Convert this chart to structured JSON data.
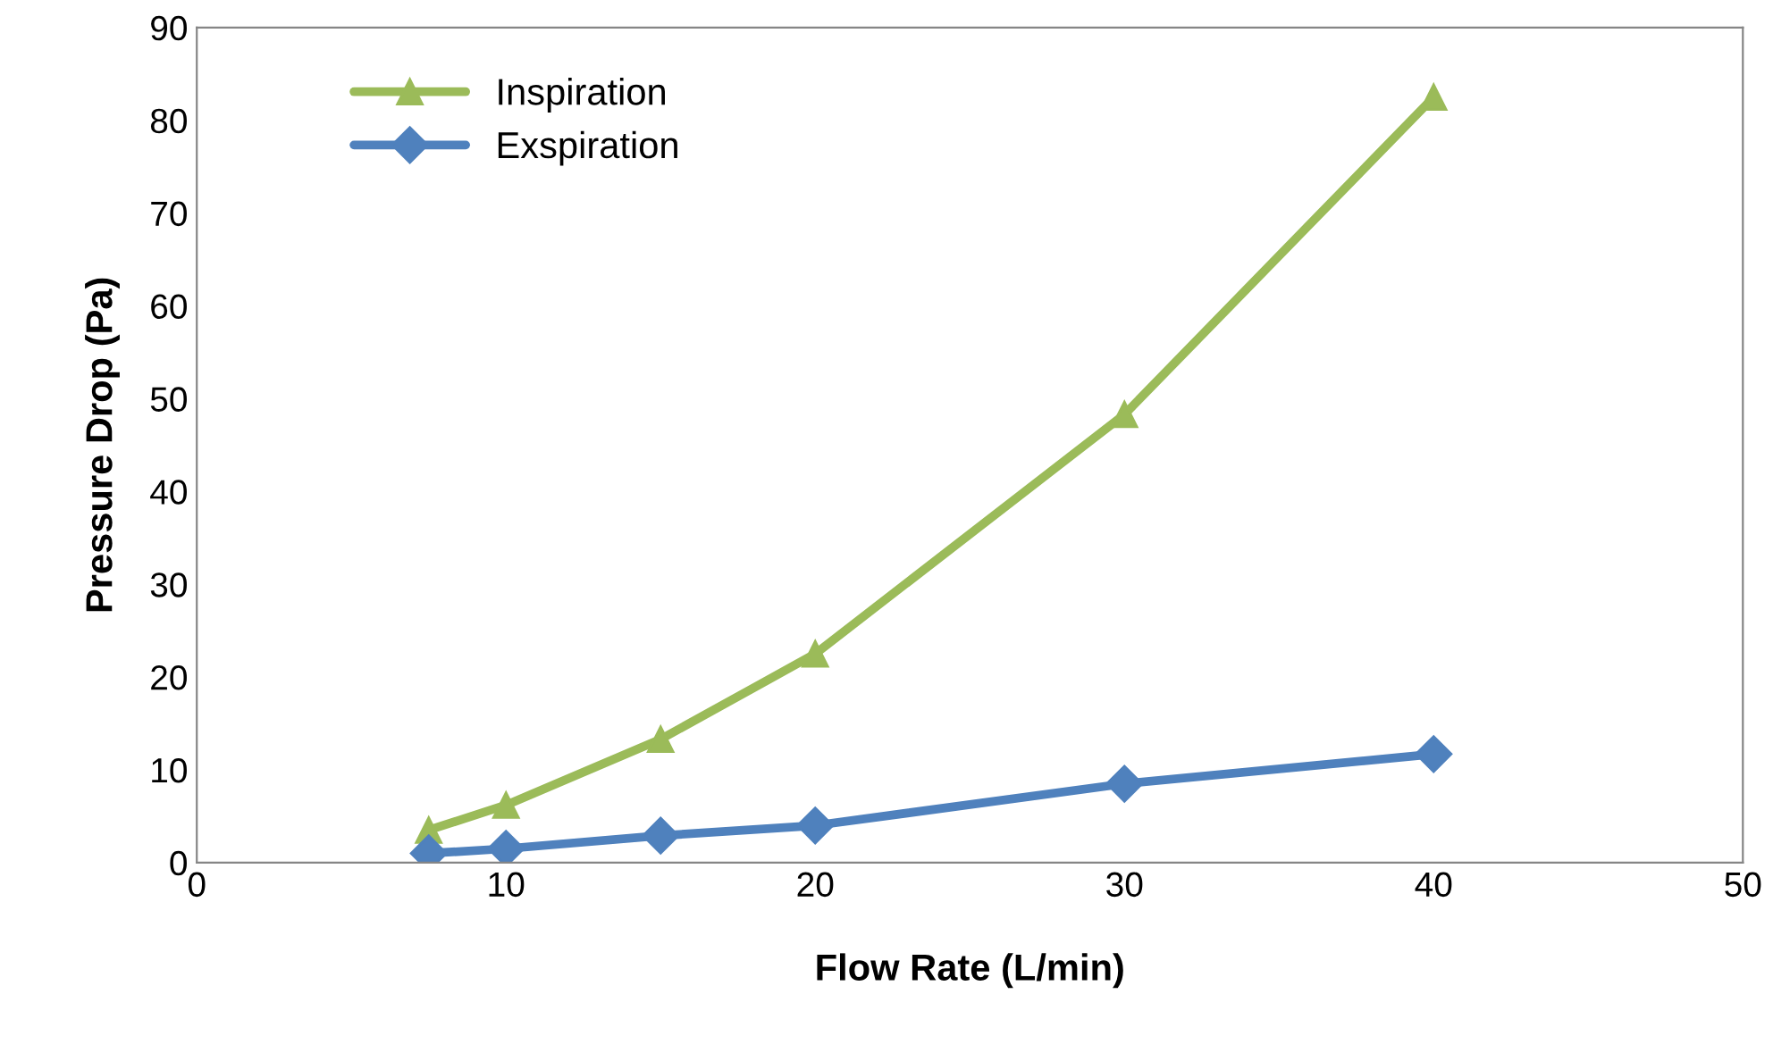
{
  "chart_data": {
    "type": "line",
    "xlabel": "Flow Rate (L/min)",
    "ylabel": "Pressure Drop (Pa)",
    "x": [
      7.5,
      10,
      15,
      20,
      30,
      40
    ],
    "series": [
      {
        "name": "Inspiration",
        "color": "#9bbb59",
        "marker": "triangle",
        "values": [
          3.5,
          6.2,
          13.3,
          22.5,
          48.3,
          82.5
        ]
      },
      {
        "name": "Exspiration",
        "color": "#4f81bd",
        "marker": "diamond",
        "values": [
          1.0,
          1.5,
          2.9,
          4.0,
          8.5,
          11.7
        ]
      }
    ],
    "xlim": [
      0,
      50
    ],
    "xticks": [
      0,
      10,
      20,
      30,
      40,
      50
    ],
    "ylim": [
      0,
      90
    ],
    "yticks": [
      0,
      10,
      20,
      30,
      40,
      50,
      60,
      70,
      80,
      90
    ],
    "grid": false,
    "legend": "top left",
    "line_style": "solid"
  }
}
